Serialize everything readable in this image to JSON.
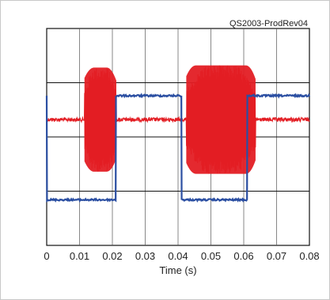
{
  "chart_data": {
    "type": "line",
    "title": "",
    "tag": "QS2003-ProdRev04",
    "xlabel": "Time (s)",
    "xlim": [
      0,
      0.08
    ],
    "x_ticks": [
      "0",
      "0.01",
      "0.02",
      "0.03",
      "0.04",
      "0.05",
      "0.06",
      "0.07",
      "0.08"
    ],
    "grid": true,
    "grid_divisions": {
      "x": 8,
      "y": 8
    },
    "series": [
      {
        "color": "#2b4fa2",
        "shape": "square-wave",
        "x": [
          0,
          0.0001,
          0.021,
          0.0211,
          0.041,
          0.0411,
          0.061,
          0.0611,
          0.08
        ],
        "level_fraction": [
          0.69,
          0.21,
          0.21,
          0.69,
          0.69,
          0.21,
          0.21,
          0.69,
          0.69
        ]
      },
      {
        "color": "#e31e24",
        "shape": "bursts",
        "baseline_fraction": 0.58,
        "bursts": [
          {
            "x": [
              0.0115,
              0.0212
            ],
            "amplitude_fraction": 0.24
          },
          {
            "x": [
              0.0425,
              0.0636
            ],
            "amplitude_fraction": 0.25
          }
        ]
      }
    ]
  }
}
